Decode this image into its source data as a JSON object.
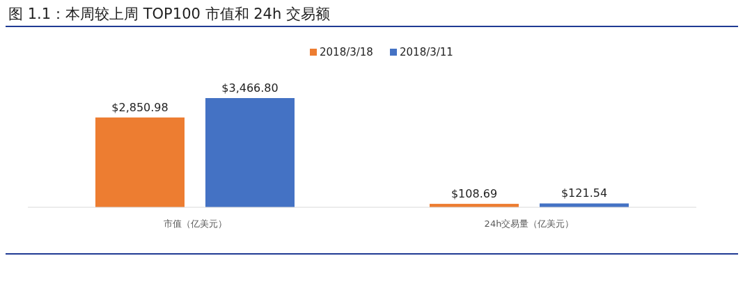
{
  "chart_data": {
    "type": "bar",
    "title": "图 1.1：本周较上周 TOP100 市值和 24h 交易额",
    "categories": [
      "市值（亿美元）",
      "24h交易量（亿美元）"
    ],
    "legend": "top",
    "series": [
      {
        "name": "2018/3/18",
        "color": "#ed7d31",
        "values": [
          2850.98,
          108.69
        ],
        "value_labels": [
          "$2,850.98",
          "$108.69"
        ]
      },
      {
        "name": "2018/3/11",
        "color": "#4472c4",
        "values": [
          3466.8,
          121.54
        ],
        "value_labels": [
          "$3,466.80",
          "$121.54"
        ]
      }
    ]
  }
}
